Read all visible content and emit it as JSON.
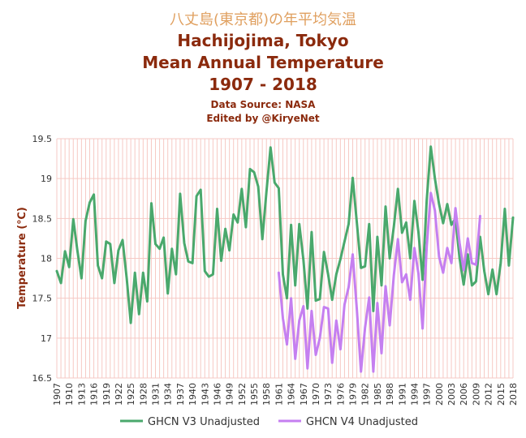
{
  "chart_data": {
    "type": "line",
    "title_jp": "八丈島(東京都)の年平均気温",
    "title_lines": [
      "Hachijojima, Tokyo",
      "Mean Annual Temperature",
      "1907 - 2018"
    ],
    "subtitle_lines": [
      "Data Source: NASA",
      "Edited by @KiryeNet"
    ],
    "ylabel": "Temperature (℃)",
    "xlabel": "",
    "ylim": [
      16.5,
      19.5
    ],
    "yticks": [
      16.5,
      17,
      17.5,
      18,
      18.5,
      19,
      19.5
    ],
    "ytick_labels": [
      "16.5",
      "17",
      "17.5",
      "18",
      "18.5",
      "19",
      "19.5"
    ],
    "xlim": [
      1907,
      2018
    ],
    "xtick_labels": [
      "1907",
      "1910",
      "1913",
      "1916",
      "1919",
      "1922",
      "1925",
      "1928",
      "1931",
      "1934",
      "1937",
      "1940",
      "1943",
      "1946",
      "1949",
      "1952",
      "1955",
      "1958",
      "1961",
      "1964",
      "1967",
      "1970",
      "1973",
      "1976",
      "1979",
      "1982",
      "1985",
      "1988",
      "1991",
      "1994",
      "1997",
      "2000",
      "2003",
      "2006",
      "2009",
      "2012",
      "2015",
      "2018"
    ],
    "grid": true,
    "legend_position": "bottom",
    "series": [
      {
        "name": "GHCN V3 Unadjusted",
        "color": "#4aa86c",
        "start_year": 1907,
        "end_year": 2018,
        "values": [
          17.84,
          17.69,
          18.09,
          17.89,
          18.49,
          18.1,
          17.75,
          18.47,
          18.7,
          18.8,
          17.91,
          17.75,
          18.21,
          18.18,
          17.69,
          18.1,
          18.23,
          17.75,
          17.19,
          17.82,
          17.3,
          17.82,
          17.46,
          18.69,
          18.18,
          18.12,
          18.26,
          17.56,
          18.12,
          17.8,
          18.81,
          18.19,
          17.96,
          17.94,
          18.78,
          18.86,
          17.84,
          17.77,
          17.8,
          18.62,
          17.97,
          18.37,
          18.1,
          18.55,
          18.45,
          18.87,
          18.39,
          19.12,
          19.08,
          18.9,
          18.24,
          18.83,
          19.39,
          18.95,
          18.88,
          17.8,
          17.5,
          18.42,
          17.66,
          18.43,
          17.98,
          17.37,
          18.33,
          17.47,
          17.49,
          18.08,
          17.8,
          17.48,
          17.8,
          17.99,
          18.21,
          18.43,
          19.01,
          18.45,
          17.88,
          17.9,
          18.43,
          17.34,
          18.27,
          17.66,
          18.65,
          18.0,
          18.4,
          18.87,
          18.32,
          18.45,
          18.0,
          18.72,
          18.33,
          17.73,
          18.73,
          19.4,
          19.0,
          18.68,
          18.44,
          18.68,
          18.42,
          18.5,
          18.0,
          17.67,
          18.05,
          17.66,
          17.71,
          18.27,
          17.84,
          17.55,
          17.86,
          17.55,
          17.94,
          18.62,
          17.91,
          18.51
        ]
      },
      {
        "name": "GHCN V4 Unadjusted",
        "color": "#c57ff0",
        "start_year": 1961,
        "end_year": 2010,
        "values": [
          17.82,
          17.25,
          16.92,
          17.5,
          16.74,
          17.22,
          17.4,
          16.62,
          17.34,
          16.79,
          17.0,
          17.39,
          17.37,
          16.69,
          17.22,
          16.86,
          17.42,
          17.64,
          18.05,
          17.36,
          16.58,
          17.13,
          17.51,
          16.58,
          17.44,
          16.81,
          17.65,
          17.16,
          17.79,
          18.24,
          17.7,
          17.8,
          17.48,
          18.13,
          17.81,
          17.12,
          18.15,
          18.82,
          18.6,
          18.02,
          17.82,
          18.13,
          17.94,
          18.63,
          18.19,
          17.85,
          18.25,
          17.94,
          17.92,
          18.53
        ]
      }
    ]
  }
}
